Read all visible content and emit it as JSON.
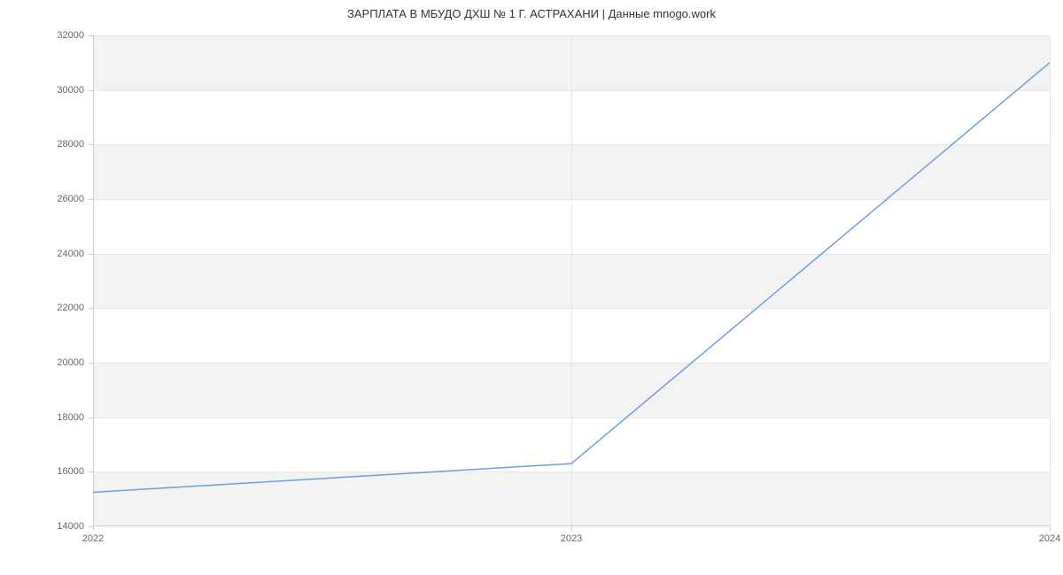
{
  "chart": {
    "type": "line",
    "title": "ЗАРПЛАТА В МБУДО ДХШ № 1 Г. АСТРАХАНИ | Данные mnogo.work",
    "title_fontsize": 13,
    "title_color": "#333333",
    "background_color": "#ffffff",
    "band_color": "#f3f3f3",
    "grid_color": "#e6e6e6",
    "axis_color": "#cccccc",
    "tick_color": "#666666",
    "tick_fontsize": 11,
    "line_color": "#6f9fd8",
    "line_width": 1.5,
    "x": {
      "min": 2022,
      "max": 2024,
      "ticks": [
        2022,
        2023,
        2024
      ],
      "labels": [
        "2022",
        "2023",
        "2024"
      ]
    },
    "y": {
      "min": 14000,
      "max": 32000,
      "ticks": [
        14000,
        16000,
        18000,
        20000,
        22000,
        24000,
        26000,
        28000,
        30000,
        32000
      ],
      "labels": [
        "14000",
        "16000",
        "18000",
        "20000",
        "22000",
        "24000",
        "26000",
        "28000",
        "30000",
        "32000"
      ]
    },
    "bands": [
      {
        "from": 14000,
        "to": 16000
      },
      {
        "from": 18000,
        "to": 20000
      },
      {
        "from": 22000,
        "to": 24000
      },
      {
        "from": 26000,
        "to": 28000
      },
      {
        "from": 30000,
        "to": 32000
      }
    ],
    "data": {
      "x": [
        2022,
        2023,
        2024
      ],
      "y": [
        15250,
        16300,
        31000
      ]
    }
  }
}
